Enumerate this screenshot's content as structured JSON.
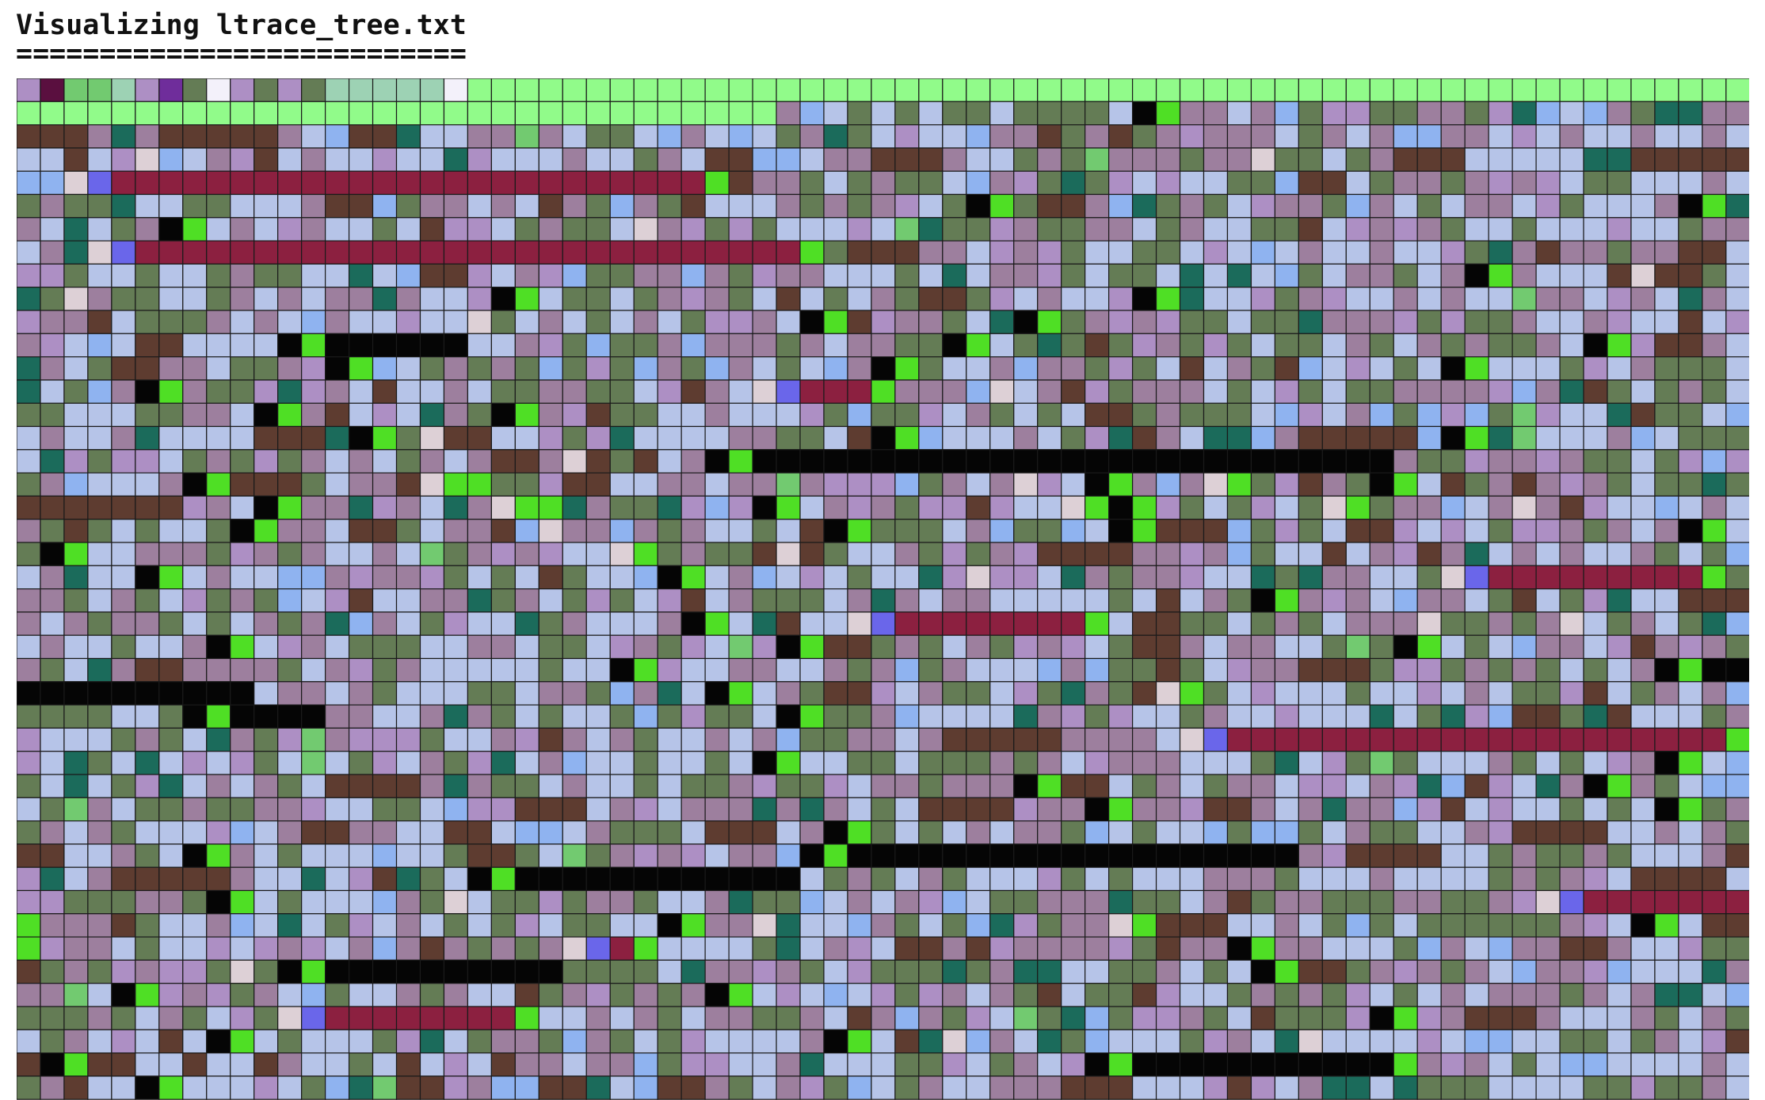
{
  "header": {
    "title": "Visualizing ltrace_tree.txt",
    "underline": "==========================="
  },
  "grid": {
    "columns": 73,
    "rows": 44,
    "cell_border_color": "#1a1a1a",
    "palette": {
      "lavender": "#b6c4e8",
      "mauve": "#9d7f9e",
      "olive": "#647c55",
      "lilac": "#ad8fc4",
      "sky": "#8fb3f0",
      "teal": "#1b6b5b",
      "brown": "#5e3c30",
      "black": "#050505",
      "lime": "#4fdf25",
      "crimson": "#8c2040",
      "blush": "#ddd0d6",
      "indigo": "#6a66ea",
      "mint": "#91fb8a",
      "sage": "#9dd2b4",
      "leaf": "#72ca70",
      "plum": "#5a0f3f",
      "purple": "#6f2d9b",
      "ivory": "#f3f1fa"
    }
  }
}
